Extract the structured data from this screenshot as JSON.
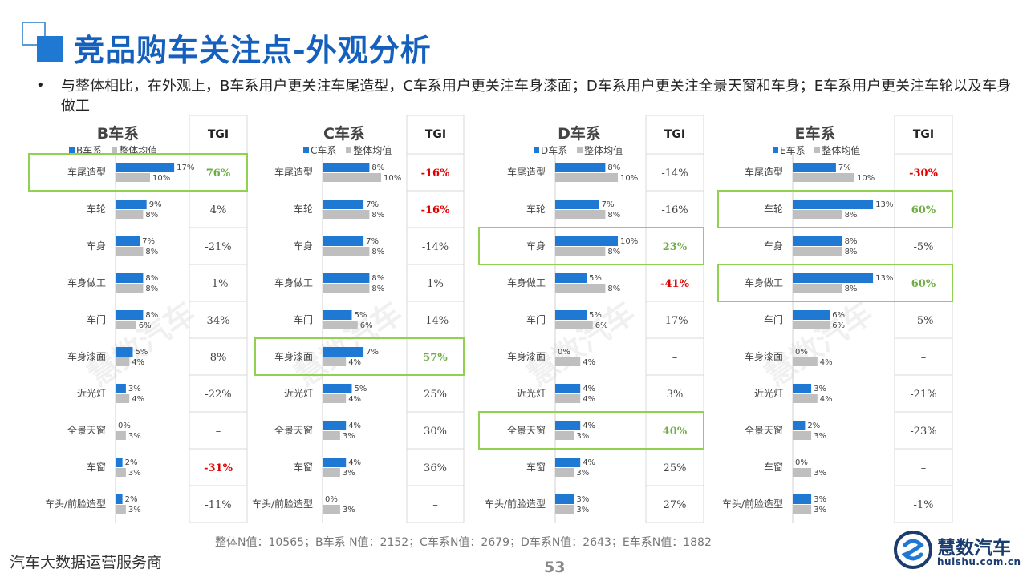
{
  "page": {
    "title": "竞品购车关注点-外观分析",
    "bullet": "与整体相比，在外观上，B车系用户更关注车尾造型，C车系用户更关注车身漆面；D车系用户更关注全景天窗和车身；E车系用户更关注车轮以及车身做工",
    "footnote": "整体N值：10565；B车系 N值：2152；C车系N值：2679；D车系N值：2643；E车系N值：1882",
    "tagline": "汽车大数据运营服务商",
    "page_number": "53",
    "logo_name": "慧数汽车",
    "logo_url": "huishu.com.cn",
    "watermark": "慧数汽车"
  },
  "colors": {
    "brand_bar": "#1f78d1",
    "average_bar": "#bfbfbf",
    "tgi_negative": "#e00000",
    "tgi_positive": "#70ad47",
    "highlight_box": "#92d050"
  },
  "chart_data": [
    {
      "type": "bar",
      "title": "B车系",
      "tgi_header": "TGI",
      "categories": [
        "车尾造型",
        "车轮",
        "车身",
        "车身做工",
        "车门",
        "车身漆面",
        "近光灯",
        "全景天窗",
        "车窗",
        "车头/前脸造型"
      ],
      "series": [
        {
          "name": "B车系",
          "values": [
            17,
            9,
            7,
            8,
            8,
            5,
            3,
            0,
            2,
            2
          ]
        },
        {
          "name": "整体均值",
          "values": [
            10,
            8,
            8,
            8,
            6,
            4,
            4,
            3,
            3,
            3
          ]
        }
      ],
      "tgi": [
        "76%",
        "4%",
        "-21%",
        "-1%",
        "34%",
        "8%",
        "-22%",
        "–",
        "-31%",
        "-11%"
      ],
      "tgi_style": [
        "positive",
        "",
        "",
        "",
        "",
        "",
        "",
        "",
        "negative",
        ""
      ],
      "highlighted": [
        0
      ]
    },
    {
      "type": "bar",
      "title": "C车系",
      "tgi_header": "TGI",
      "categories": [
        "车尾造型",
        "车轮",
        "车身",
        "车身做工",
        "车门",
        "车身漆面",
        "近光灯",
        "全景天窗",
        "车窗",
        "车头/前脸造型"
      ],
      "series": [
        {
          "name": "C车系",
          "values": [
            8,
            7,
            7,
            8,
            5,
            7,
            5,
            4,
            4,
            0
          ]
        },
        {
          "name": "整体均值",
          "values": [
            10,
            8,
            8,
            8,
            6,
            4,
            4,
            3,
            3,
            3
          ]
        }
      ],
      "tgi": [
        "-16%",
        "-16%",
        "-14%",
        "1%",
        "-14%",
        "57%",
        "25%",
        "30%",
        "36%",
        "–"
      ],
      "tgi_style": [
        "negative",
        "negative",
        "",
        "",
        "",
        "positive",
        "",
        "",
        "",
        ""
      ],
      "highlighted": [
        5
      ]
    },
    {
      "type": "bar",
      "title": "D车系",
      "tgi_header": "TGI",
      "categories": [
        "车尾造型",
        "车轮",
        "车身",
        "车身做工",
        "车门",
        "车身漆面",
        "近光灯",
        "全景天窗",
        "车窗",
        "车头/前脸造型"
      ],
      "series": [
        {
          "name": "D车系",
          "values": [
            8,
            7,
            10,
            5,
            5,
            0,
            4,
            4,
            4,
            3
          ]
        },
        {
          "name": "整体均值",
          "values": [
            10,
            8,
            8,
            8,
            6,
            4,
            4,
            3,
            3,
            3
          ]
        }
      ],
      "tgi": [
        "-14%",
        "-16%",
        "23%",
        "-41%",
        "-17%",
        "–",
        "3%",
        "40%",
        "25%",
        "27%"
      ],
      "tgi_style": [
        "",
        "",
        "positive",
        "negative",
        "",
        "",
        "",
        "positive",
        "",
        ""
      ],
      "highlighted": [
        2,
        7
      ]
    },
    {
      "type": "bar",
      "title": "E车系",
      "tgi_header": "TGI",
      "categories": [
        "车尾造型",
        "车轮",
        "车身",
        "车身做工",
        "车门",
        "车身漆面",
        "近光灯",
        "全景天窗",
        "车窗",
        "车头/前脸造型"
      ],
      "series": [
        {
          "name": "E车系",
          "values": [
            7,
            13,
            8,
            13,
            6,
            0,
            3,
            2,
            0,
            3
          ]
        },
        {
          "name": "整体均值",
          "values": [
            10,
            8,
            8,
            8,
            6,
            4,
            4,
            3,
            3,
            3
          ]
        }
      ],
      "tgi": [
        "-30%",
        "60%",
        "-5%",
        "60%",
        "-5%",
        "–",
        "-21%",
        "-23%",
        "–",
        "-1%"
      ],
      "tgi_style": [
        "negative",
        "positive",
        "",
        "positive",
        "",
        "",
        "",
        "",
        "",
        ""
      ],
      "highlighted": [
        1,
        3
      ]
    }
  ]
}
